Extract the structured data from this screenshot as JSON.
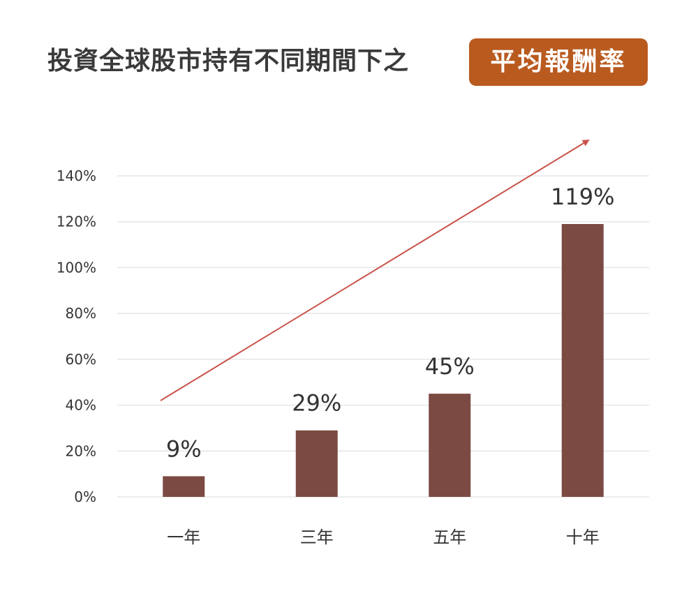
{
  "title": "投資全球股市持有不同期間下之",
  "title_badge": "平均報酬率",
  "colors": {
    "bar": "#7b4a42",
    "badge": "#b95a1f",
    "trend_arrow": "#c9524a",
    "grid": "#e6e6e6"
  },
  "chart_data": {
    "type": "bar",
    "categories": [
      "一年",
      "三年",
      "五年",
      "十年"
    ],
    "values": [
      9,
      29,
      45,
      119
    ],
    "data_labels": [
      "9%",
      "29%",
      "45%",
      "119%"
    ],
    "y_ticks": [
      "0%",
      "20%",
      "40%",
      "60%",
      "80%",
      "100%",
      "120%",
      "140%"
    ],
    "ylim": [
      0,
      140
    ],
    "grid": true,
    "trend_arrow": true,
    "title": "投資全球股市持有不同期間下之 平均報酬率",
    "xlabel": "",
    "ylabel": ""
  }
}
